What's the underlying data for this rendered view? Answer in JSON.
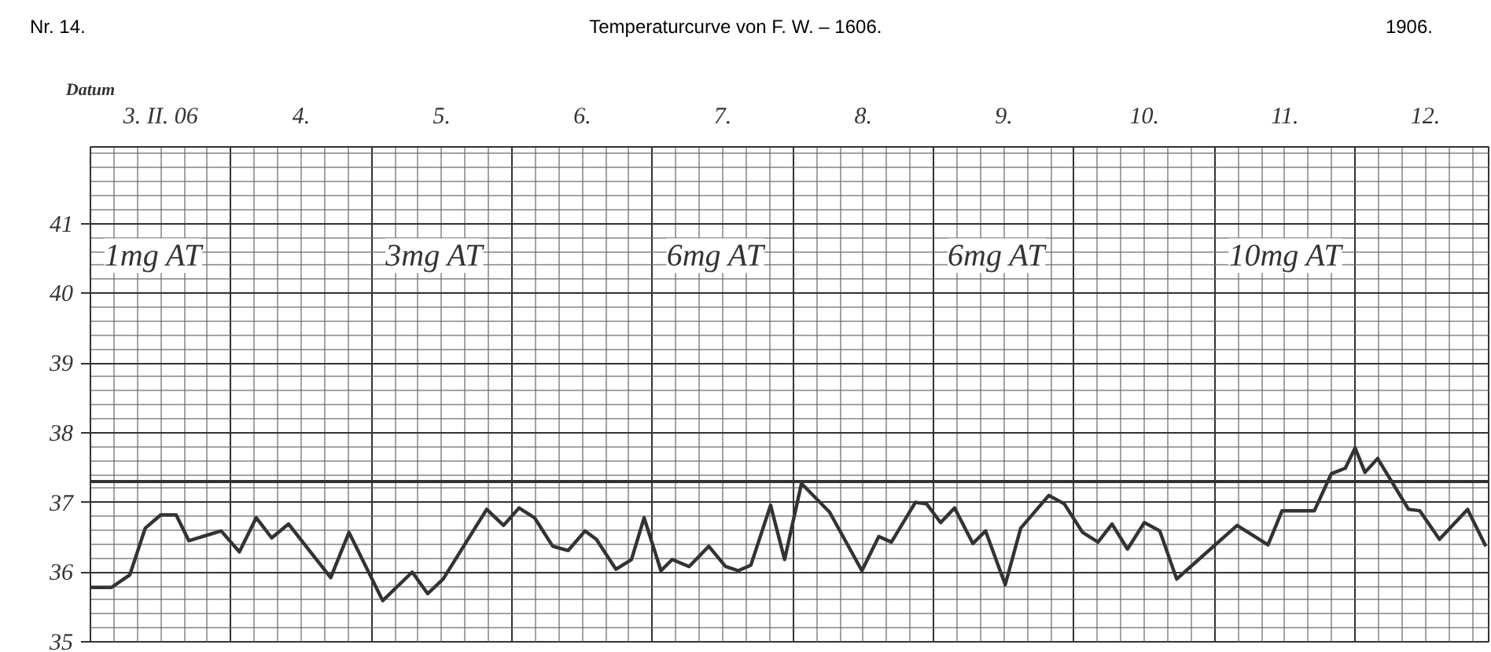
{
  "chart_data": {
    "type": "line",
    "title": "Temperaturcurve von F. W. – 1606.",
    "xlabel": "Datum",
    "annotations": [
      "Nr. 14.",
      "1906.",
      "1mg AT",
      "3mg AT",
      "6mg AT",
      "6mg AT",
      "10mg AT"
    ],
    "xlim": [
      3,
      12.95
    ],
    "xticks": [
      {
        "value": 3.5,
        "label": "3. II. 06"
      },
      {
        "value": 4.5,
        "label": "4."
      },
      {
        "value": 5.5,
        "label": "5."
      },
      {
        "value": 6.5,
        "label": "6."
      },
      {
        "value": 7.5,
        "label": "7."
      },
      {
        "value": 8.5,
        "label": "8."
      },
      {
        "value": 9.5,
        "label": "9."
      },
      {
        "value": 10.5,
        "label": "10."
      },
      {
        "value": 11.5,
        "label": "11."
      },
      {
        "value": 12.5,
        "label": "12."
      }
    ],
    "ylim": [
      35,
      42.1
    ],
    "yticks": [
      35,
      36,
      37,
      38,
      39,
      40,
      41
    ],
    "grid": true,
    "marker": "none",
    "line_style": "solid",
    "ref_lines": [
      {
        "axis": "y",
        "value": 37.3,
        "color": "#333333"
      }
    ],
    "series": [
      {
        "color": "#333333",
        "x": [
          3.0,
          3.15,
          3.28,
          3.39,
          3.5,
          3.61,
          3.7,
          3.93,
          4.06,
          4.18,
          4.29,
          4.41,
          4.71,
          4.84,
          5.08,
          5.29,
          5.4,
          5.51,
          5.82,
          5.94,
          6.05,
          6.16,
          6.29,
          6.4,
          6.52,
          6.6,
          6.74,
          6.85,
          6.94,
          7.06,
          7.14,
          7.26,
          7.4,
          7.52,
          7.61,
          7.7,
          7.84,
          7.94,
          8.06,
          8.26,
          8.49,
          8.61,
          8.7,
          8.87,
          8.95,
          9.05,
          9.15,
          9.28,
          9.37,
          9.51,
          9.62,
          9.82,
          9.93,
          10.06,
          10.17,
          10.27,
          10.38,
          10.5,
          10.61,
          10.73,
          11.16,
          11.38,
          11.48,
          11.71,
          11.83,
          11.93,
          12.0,
          12.07,
          12.16,
          12.38,
          12.46,
          12.6,
          12.8,
          12.93
        ],
        "values": [
          35.78,
          35.78,
          35.96,
          36.63,
          36.82,
          36.82,
          36.45,
          36.59,
          36.29,
          36.78,
          36.49,
          36.69,
          35.92,
          36.57,
          35.59,
          36.0,
          35.69,
          35.9,
          36.9,
          36.67,
          36.92,
          36.78,
          36.37,
          36.31,
          36.59,
          36.47,
          36.04,
          36.18,
          36.78,
          36.02,
          36.18,
          36.08,
          36.37,
          36.08,
          36.02,
          36.1,
          36.96,
          36.18,
          37.27,
          36.86,
          36.02,
          36.51,
          36.43,
          37.0,
          36.98,
          36.71,
          36.92,
          36.41,
          36.59,
          35.82,
          36.63,
          37.1,
          36.98,
          36.57,
          36.43,
          36.69,
          36.33,
          36.71,
          36.59,
          35.9,
          36.67,
          36.39,
          36.88,
          36.88,
          37.41,
          37.49,
          37.78,
          37.43,
          37.63,
          36.9,
          36.88,
          36.47,
          36.9,
          36.37
        ]
      }
    ]
  }
}
